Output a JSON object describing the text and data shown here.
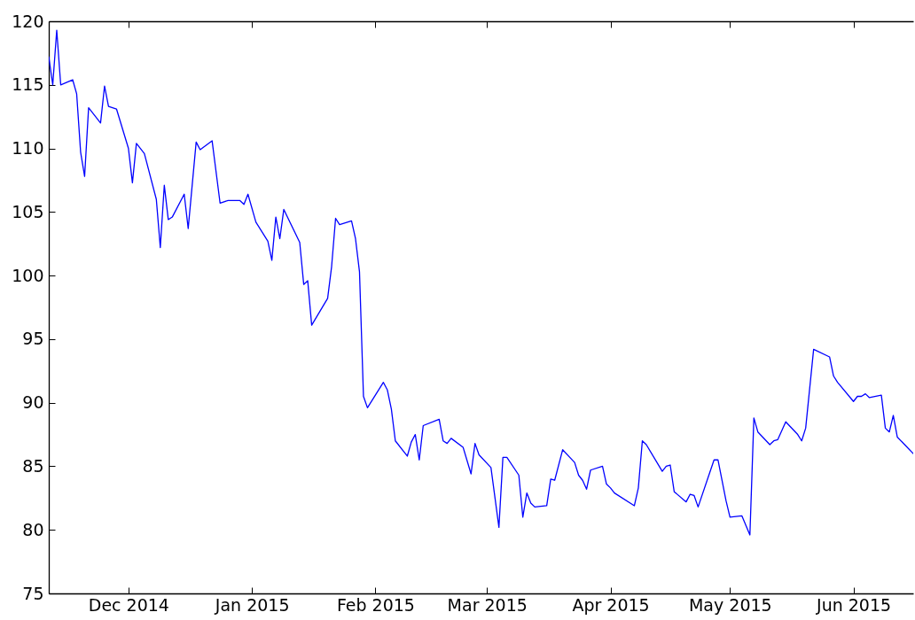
{
  "chart_data": {
    "type": "line",
    "x": [
      "2014-11-11",
      "2014-11-12",
      "2014-11-13",
      "2014-11-14",
      "2014-11-17",
      "2014-11-18",
      "2014-11-19",
      "2014-11-20",
      "2014-11-21",
      "2014-11-24",
      "2014-11-25",
      "2014-11-26",
      "2014-11-28",
      "2014-12-01",
      "2014-12-02",
      "2014-12-03",
      "2014-12-04",
      "2014-12-05",
      "2014-12-08",
      "2014-12-09",
      "2014-12-10",
      "2014-12-11",
      "2014-12-12",
      "2014-12-15",
      "2014-12-16",
      "2014-12-18",
      "2014-12-19",
      "2014-12-22",
      "2014-12-24",
      "2014-12-26",
      "2014-12-29",
      "2014-12-30",
      "2014-12-31",
      "2015-01-02",
      "2015-01-05",
      "2015-01-06",
      "2015-01-07",
      "2015-01-08",
      "2015-01-09",
      "2015-01-13",
      "2015-01-14",
      "2015-01-15",
      "2015-01-16",
      "2015-01-20",
      "2015-01-21",
      "2015-01-22",
      "2015-01-23",
      "2015-01-26",
      "2015-01-27",
      "2015-01-28",
      "2015-01-29",
      "2015-01-30",
      "2015-02-03",
      "2015-02-04",
      "2015-02-05",
      "2015-02-06",
      "2015-02-09",
      "2015-02-10",
      "2015-02-11",
      "2015-02-12",
      "2015-02-13",
      "2015-02-17",
      "2015-02-18",
      "2015-02-19",
      "2015-02-20",
      "2015-02-23",
      "2015-02-25",
      "2015-02-26",
      "2015-02-27",
      "2015-03-02",
      "2015-03-04",
      "2015-03-05",
      "2015-03-06",
      "2015-03-09",
      "2015-03-10",
      "2015-03-11",
      "2015-03-12",
      "2015-03-13",
      "2015-03-16",
      "2015-03-17",
      "2015-03-18",
      "2015-03-20",
      "2015-03-23",
      "2015-03-24",
      "2015-03-25",
      "2015-03-26",
      "2015-03-27",
      "2015-03-30",
      "2015-03-31",
      "2015-04-01",
      "2015-04-02",
      "2015-04-07",
      "2015-04-08",
      "2015-04-09",
      "2015-04-10",
      "2015-04-14",
      "2015-04-15",
      "2015-04-16",
      "2015-04-17",
      "2015-04-20",
      "2015-04-21",
      "2015-04-22",
      "2015-04-23",
      "2015-04-27",
      "2015-04-28",
      "2015-04-30",
      "2015-05-01",
      "2015-05-04",
      "2015-05-06",
      "2015-05-07",
      "2015-05-08",
      "2015-05-11",
      "2015-05-12",
      "2015-05-13",
      "2015-05-15",
      "2015-05-18",
      "2015-05-19",
      "2015-05-20",
      "2015-05-22",
      "2015-05-26",
      "2015-05-27",
      "2015-05-28",
      "2015-06-01",
      "2015-06-02",
      "2015-06-03",
      "2015-06-04",
      "2015-06-05",
      "2015-06-08",
      "2015-06-09",
      "2015-06-10",
      "2015-06-11",
      "2015-06-12",
      "2015-06-16"
    ],
    "series": [
      {
        "color": "#0000ff",
        "values": [
          117.2,
          115.0,
          119.3,
          115.0,
          115.4,
          114.3,
          109.7,
          107.8,
          113.2,
          112.0,
          114.9,
          113.3,
          113.1,
          110.0,
          107.3,
          110.4,
          110.0,
          109.6,
          106.0,
          102.2,
          107.1,
          104.4,
          104.6,
          106.4,
          103.7,
          110.5,
          109.9,
          110.6,
          105.7,
          105.9,
          105.9,
          105.6,
          106.4,
          104.2,
          102.7,
          101.2,
          104.6,
          102.9,
          105.2,
          102.6,
          99.3,
          99.6,
          96.1,
          98.2,
          100.7,
          104.5,
          104.0,
          104.3,
          102.9,
          100.3,
          90.5,
          89.6,
          91.6,
          91.0,
          89.5,
          87.0,
          85.8,
          86.9,
          87.5,
          85.5,
          88.2,
          88.7,
          87.0,
          86.8,
          87.2,
          86.5,
          84.4,
          86.8,
          85.9,
          84.9,
          80.2,
          85.7,
          85.7,
          84.3,
          81.0,
          82.9,
          82.1,
          81.8,
          81.9,
          84.0,
          83.9,
          86.3,
          85.3,
          84.3,
          83.9,
          83.2,
          84.7,
          85.0,
          83.6,
          83.3,
          82.9,
          81.9,
          83.3,
          87.0,
          86.7,
          84.6,
          85.0,
          85.1,
          83.0,
          82.2,
          82.8,
          82.7,
          81.8,
          85.5,
          85.5,
          82.3,
          81.0,
          81.1,
          79.6,
          88.8,
          87.7,
          86.7,
          87.0,
          87.1,
          88.5,
          87.5,
          87.0,
          88.0,
          94.2,
          93.6,
          92.1,
          91.6,
          90.1,
          90.5,
          90.5,
          90.7,
          90.4,
          90.6,
          88.0,
          87.7,
          89.0,
          87.3,
          86.0
        ]
      }
    ],
    "xlim": [
      "2014-11-11",
      "2015-06-16"
    ],
    "ylim": [
      75,
      120
    ],
    "xticks": [
      {
        "value": "2014-12-01",
        "label": "Dec 2014"
      },
      {
        "value": "2015-01-01",
        "label": "Jan 2015"
      },
      {
        "value": "2015-02-01",
        "label": "Feb 2015"
      },
      {
        "value": "2015-03-01",
        "label": "Mar 2015"
      },
      {
        "value": "2015-04-01",
        "label": "Apr 2015"
      },
      {
        "value": "2015-05-01",
        "label": "May 2015"
      },
      {
        "value": "2015-06-01",
        "label": "Jun 2015"
      }
    ],
    "yticks": [
      75,
      80,
      85,
      90,
      95,
      100,
      105,
      110,
      115,
      120
    ]
  }
}
